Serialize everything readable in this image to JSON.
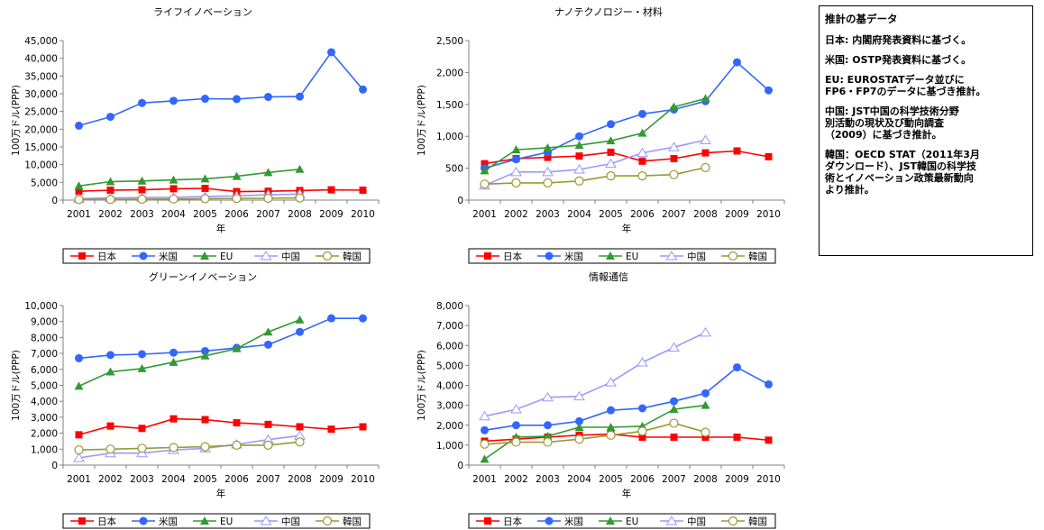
{
  "colors": {
    "日本": "#ff0000",
    "米国": "#3366ff",
    "EU": "#339933",
    "中国": "#9999ff",
    "韓国": "#999933"
  },
  "legend": [
    "日本",
    "米国",
    "EU",
    "中国",
    "韓国"
  ],
  "note": {
    "title": "推計の基データ",
    "lines": [
      "日本: 内閣府発表資料に基づく。",
      "米国: OSTP発表資料に基づく。",
      "EU: EUROSTATデータ並びに\nFP6・FP7のデータに基づき推計。",
      "中国: JST中国の科学技術分野\n別活動の現状及び動向調査\n（2009）に基づき推計。",
      "韓国：OECD STAT（2011年3月\nダウンロード）、JST韓国の科学技\n術とイノベーション政策最新動向\nより推計。"
    ]
  },
  "chart_data": [
    {
      "type": "line",
      "title": "ライフイノベーション",
      "xlabel": "年",
      "ylabel": "100万ドル(PPP)",
      "x": [
        "2001",
        "2002",
        "2003",
        "2004",
        "2005",
        "2006",
        "2007",
        "2008",
        "2009",
        "2010"
      ],
      "ylim": [
        0,
        45000
      ],
      "yticks": [
        "0",
        "5,000",
        "10,000",
        "15,000",
        "20,000",
        "25,000",
        "30,000",
        "35,000",
        "40,000",
        "45,000"
      ],
      "series": [
        {
          "name": "日本",
          "values": [
            2500,
            2800,
            2900,
            3200,
            3300,
            2400,
            2500,
            2700,
            2900,
            2800
          ]
        },
        {
          "name": "米国",
          "values": [
            21000,
            23500,
            27400,
            28000,
            28600,
            28500,
            29100,
            29200,
            41700,
            31200
          ]
        },
        {
          "name": "EU",
          "values": [
            4000,
            5200,
            5400,
            5700,
            6000,
            6700,
            7800,
            8700,
            null,
            null
          ]
        },
        {
          "name": "中国",
          "values": [
            400,
            600,
            700,
            800,
            1000,
            1200,
            1500,
            1700,
            null,
            null
          ]
        },
        {
          "name": "韓国",
          "values": [
            150,
            200,
            250,
            300,
            400,
            450,
            500,
            600,
            null,
            null
          ]
        }
      ]
    },
    {
      "type": "line",
      "title": "ナノテクノロジー・材料",
      "xlabel": "年",
      "ylabel": "100万ドル(PPP)",
      "x": [
        "2001",
        "2002",
        "2003",
        "2004",
        "2005",
        "2006",
        "2007",
        "2008",
        "2009",
        "2010"
      ],
      "ylim": [
        0,
        2500
      ],
      "yticks": [
        "0",
        "500",
        "1,000",
        "1,500",
        "2,000",
        "2,500"
      ],
      "series": [
        {
          "name": "日本",
          "values": [
            570,
            650,
            670,
            690,
            750,
            610,
            650,
            740,
            770,
            680
          ]
        },
        {
          "name": "米国",
          "values": [
            500,
            640,
            750,
            1000,
            1190,
            1350,
            1420,
            1550,
            2160,
            1720
          ]
        },
        {
          "name": "EU",
          "values": [
            460,
            790,
            820,
            860,
            930,
            1050,
            1460,
            1590,
            null,
            null
          ]
        },
        {
          "name": "中国",
          "values": [
            230,
            440,
            440,
            480,
            570,
            740,
            830,
            940,
            null,
            null
          ]
        },
        {
          "name": "韓国",
          "values": [
            250,
            270,
            270,
            300,
            380,
            380,
            400,
            510,
            null,
            null
          ]
        }
      ]
    },
    {
      "type": "line",
      "title": "グリーンイノベーション",
      "xlabel": "年",
      "ylabel": "100万ドル(PPP)",
      "x": [
        "2001",
        "2002",
        "2003",
        "2004",
        "2005",
        "2006",
        "2007",
        "2008",
        "2009",
        "2010"
      ],
      "ylim": [
        0,
        10000
      ],
      "yticks": [
        "0",
        "1,000",
        "2,000",
        "3,000",
        "4,000",
        "5,000",
        "6,000",
        "7,000",
        "8,000",
        "9,000",
        "10,000"
      ],
      "series": [
        {
          "name": "日本",
          "values": [
            1900,
            2450,
            2300,
            2900,
            2850,
            2650,
            2550,
            2400,
            2250,
            2400
          ]
        },
        {
          "name": "米国",
          "values": [
            6700,
            6900,
            6950,
            7050,
            7150,
            7350,
            7550,
            8350,
            9200,
            9200
          ]
        },
        {
          "name": "EU",
          "values": [
            4950,
            5850,
            6050,
            6450,
            6850,
            7300,
            8350,
            9100,
            null,
            null
          ]
        },
        {
          "name": "中国",
          "values": [
            450,
            750,
            750,
            950,
            1050,
            1300,
            1600,
            1850,
            null,
            null
          ]
        },
        {
          "name": "韓国",
          "values": [
            950,
            1000,
            1050,
            1100,
            1150,
            1250,
            1250,
            1450,
            null,
            null
          ]
        }
      ]
    },
    {
      "type": "line",
      "title": "情報通信",
      "xlabel": "年",
      "ylabel": "100万ドル(PPP)",
      "x": [
        "2001",
        "2002",
        "2003",
        "2004",
        "2005",
        "2006",
        "2007",
        "2008",
        "2009",
        "2010"
      ],
      "ylim": [
        0,
        8000
      ],
      "yticks": [
        "0",
        "1,000",
        "2,000",
        "3,000",
        "4,000",
        "5,000",
        "6,000",
        "7,000",
        "8,000"
      ],
      "series": [
        {
          "name": "日本",
          "values": [
            1200,
            1300,
            1400,
            1500,
            1550,
            1400,
            1400,
            1400,
            1400,
            1250
          ]
        },
        {
          "name": "米国",
          "values": [
            1750,
            2000,
            2000,
            2200,
            2750,
            2850,
            3200,
            3600,
            4900,
            4050
          ]
        },
        {
          "name": "EU",
          "values": [
            300,
            1400,
            1450,
            1900,
            1900,
            1950,
            2800,
            3000,
            null,
            null
          ]
        },
        {
          "name": "中国",
          "values": [
            2450,
            2800,
            3400,
            3450,
            4150,
            5150,
            5900,
            6650,
            null,
            null
          ]
        },
        {
          "name": "韓国",
          "values": [
            1050,
            1150,
            1150,
            1300,
            1500,
            1700,
            2100,
            1650,
            null,
            null
          ]
        }
      ]
    }
  ]
}
